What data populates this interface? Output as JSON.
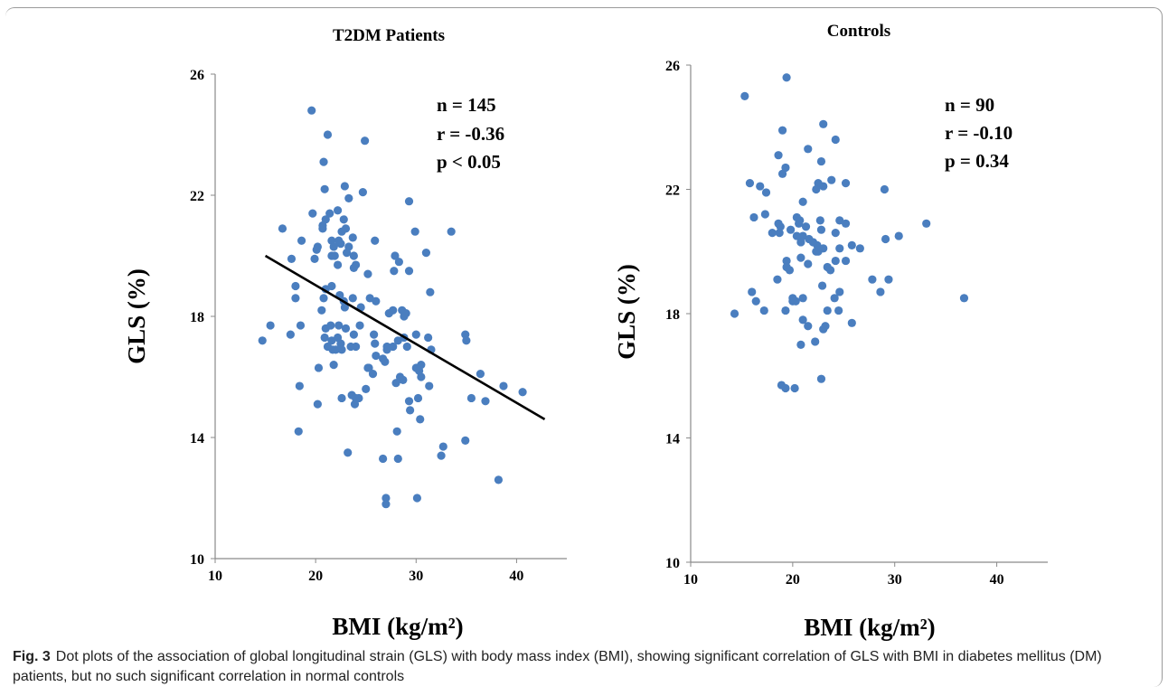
{
  "chart_data": [
    {
      "type": "scatter",
      "title": "T2DM Patients",
      "xlabel": "BMI (kg/m²)",
      "ylabel": "GLS (%)",
      "xlim": [
        10,
        45
      ],
      "ylim": [
        10,
        26
      ],
      "xticks": [
        "10",
        "20",
        "30",
        "40"
      ],
      "yticks": [
        "10",
        "14",
        "18",
        "22",
        "26"
      ],
      "color": "#4a7ebf",
      "annotation": [
        "n = 145",
        "r = -0.36",
        "p < 0.05"
      ],
      "trendline": {
        "x": [
          15,
          42.8
        ],
        "y": [
          20.0,
          14.6
        ]
      },
      "points": {
        "x": [
          19.6,
          21.2,
          24.9,
          20.8,
          20.9,
          22.9,
          24.7,
          23.3,
          29.3,
          16.7,
          19.7,
          20.7,
          21.0,
          21.4,
          22.2,
          22.8,
          22.6,
          23.0,
          21.6,
          22.5,
          20.7,
          22.3,
          23.7,
          25.9,
          21.8,
          18.6,
          20.2,
          21.9,
          23.8,
          23.1,
          29.9,
          33.5,
          17.6,
          20.1,
          19.9,
          21.6,
          22.2,
          23.3,
          24.0,
          27.9,
          31.0,
          28.3,
          18.0,
          21.6,
          25.2,
          23.8,
          27.8,
          29.3,
          31.4,
          18.0,
          21.0,
          20.8,
          22.4,
          22.8,
          23.7,
          26.0,
          25.4,
          28.6,
          27.3,
          29.0,
          22.9,
          24.5,
          27.7,
          20.6,
          22.3,
          21.5,
          23.0,
          28.8,
          18.5,
          15.5,
          14.7,
          17.5,
          21.0,
          21.6,
          22.2,
          22.5,
          23.5,
          23.8,
          24.4,
          25.8,
          28.8,
          27.1,
          28.2,
          29.1,
          30.0,
          31.2,
          20.9,
          21.2,
          21.7,
          22.0,
          22.6,
          24.0,
          26.0,
          26.7,
          25.9,
          27.1,
          27.7,
          30.5,
          31.5,
          34.9,
          35.0,
          25.3,
          26.9,
          30.3,
          28.7,
          30.0,
          30.5,
          21.8,
          25.2,
          25.7,
          28.0,
          28.4,
          36.4,
          38.7,
          40.6,
          23.6,
          25.0,
          18.4,
          20.2,
          22.6,
          24.3,
          23.9,
          24.0,
          30.2,
          31.3,
          35.5,
          36.9,
          29.3,
          18.3,
          28.1,
          29.4,
          30.4,
          34.9,
          32.7,
          23.2,
          26.7,
          28.2,
          32.5,
          38.2,
          27.0,
          30.1,
          27.0,
          20.3
        ],
        "y": [
          24.8,
          24.0,
          23.8,
          23.1,
          22.2,
          22.3,
          22.1,
          21.9,
          21.8,
          20.9,
          21.4,
          20.9,
          21.2,
          21.4,
          21.5,
          21.2,
          20.8,
          20.9,
          20.5,
          20.4,
          21.0,
          20.5,
          20.6,
          20.5,
          20.3,
          20.5,
          20.3,
          20.0,
          20.0,
          20.1,
          20.8,
          20.8,
          19.9,
          20.2,
          19.9,
          20.0,
          19.7,
          20.3,
          19.7,
          20.0,
          20.1,
          19.8,
          19.0,
          19.0,
          19.4,
          19.6,
          19.5,
          19.5,
          18.8,
          18.6,
          18.9,
          18.6,
          18.7,
          18.5,
          18.6,
          18.5,
          18.6,
          18.2,
          18.1,
          18.1,
          18.3,
          18.3,
          18.2,
          18.2,
          17.7,
          17.7,
          17.6,
          18.0,
          17.7,
          17.7,
          17.2,
          17.4,
          17.6,
          17.2,
          17.3,
          17.1,
          17.0,
          17.4,
          17.7,
          17.4,
          17.3,
          17.0,
          17.2,
          17.0,
          17.4,
          17.3,
          17.3,
          17.0,
          16.9,
          16.9,
          16.9,
          17.0,
          16.7,
          16.6,
          17.1,
          16.9,
          17.0,
          16.4,
          16.9,
          17.4,
          17.2,
          16.3,
          16.5,
          16.2,
          15.9,
          16.3,
          16.0,
          16.4,
          16.3,
          16.1,
          15.8,
          16.0,
          16.1,
          15.7,
          15.5,
          15.4,
          15.6,
          15.7,
          15.1,
          15.3,
          15.3,
          15.1,
          15.3,
          15.3,
          15.7,
          15.3,
          15.2,
          15.2,
          14.2,
          14.2,
          14.9,
          14.6,
          13.9,
          13.7,
          13.5,
          13.3,
          13.3,
          13.4,
          12.6,
          12.0,
          12.0,
          11.8,
          16.3
        ]
      }
    },
    {
      "type": "scatter",
      "title": "Controls",
      "xlabel": "BMI (kg/m²)",
      "ylabel": "GLS (%)",
      "xlim": [
        10,
        45
      ],
      "ylim": [
        10,
        26
      ],
      "xticks": [
        "10",
        "20",
        "30",
        "40"
      ],
      "yticks": [
        "10",
        "14",
        "18",
        "22",
        "26"
      ],
      "color": "#4a7ebf",
      "annotation": [
        "n = 90",
        "r = -0.10",
        "p = 0.34"
      ],
      "points": {
        "x": [
          19.4,
          15.3,
          23.0,
          19.0,
          24.2,
          21.5,
          18.6,
          22.8,
          19.3,
          19.0,
          25.2,
          23.8,
          22.5,
          23.0,
          22.3,
          15.8,
          16.8,
          29.0,
          17.4,
          21.0,
          16.2,
          17.3,
          20.4,
          18.6,
          18.8,
          22.7,
          20.7,
          20.6,
          21.3,
          19.8,
          22.8,
          24.6,
          26.6,
          18.7,
          21.0,
          21.6,
          20.4,
          22.4,
          23.0,
          25.2,
          20.8,
          24.2,
          25.8,
          22.3,
          22.0,
          24.6,
          19.4,
          20.8,
          21.5,
          23.4,
          24.2,
          33.1,
          30.4,
          29.1,
          19.4,
          19.7,
          23.7,
          25.2,
          29.4,
          27.8,
          18.5,
          22.9,
          24.6,
          16.0,
          16.4,
          20.0,
          21.0,
          28.6,
          36.8,
          17.2,
          24.1,
          20.0,
          20.3,
          19.3,
          23.4,
          14.3,
          21.0,
          25.8,
          24.5,
          21.5,
          23.2,
          23.0,
          20.8,
          22.2,
          18.9,
          22.8,
          20.2,
          19.3,
          22.5,
          18.0
        ],
        "y": [
          25.6,
          25.0,
          24.1,
          23.9,
          23.6,
          23.3,
          23.1,
          22.9,
          22.7,
          22.5,
          22.2,
          22.3,
          22.2,
          22.1,
          22.0,
          22.2,
          22.1,
          22.0,
          21.9,
          21.6,
          21.1,
          21.2,
          21.1,
          20.9,
          20.8,
          21.0,
          21.0,
          20.9,
          20.8,
          20.7,
          20.7,
          21.0,
          20.1,
          20.6,
          20.5,
          20.4,
          20.5,
          20.2,
          20.1,
          20.9,
          20.3,
          20.6,
          20.2,
          20.0,
          20.3,
          20.1,
          19.7,
          19.8,
          19.6,
          19.5,
          19.7,
          20.9,
          20.5,
          20.4,
          19.5,
          19.4,
          19.4,
          19.7,
          19.1,
          19.1,
          19.1,
          18.9,
          18.7,
          18.7,
          18.4,
          18.5,
          18.5,
          18.7,
          18.5,
          18.1,
          18.5,
          18.4,
          18.4,
          18.1,
          18.1,
          18.0,
          17.8,
          17.7,
          18.1,
          17.6,
          17.6,
          17.5,
          17.0,
          17.1,
          15.7,
          15.9,
          15.6,
          15.6,
          20.0,
          20.6
        ]
      }
    }
  ],
  "caption": {
    "label": "Fig. 3",
    "text": "Dot plots of the association of global longitudinal strain (GLS) with body mass index (BMI), showing significant correlation of GLS with BMI in diabetes mellitus (DM) patients, but no such significant correlation in normal controls"
  }
}
